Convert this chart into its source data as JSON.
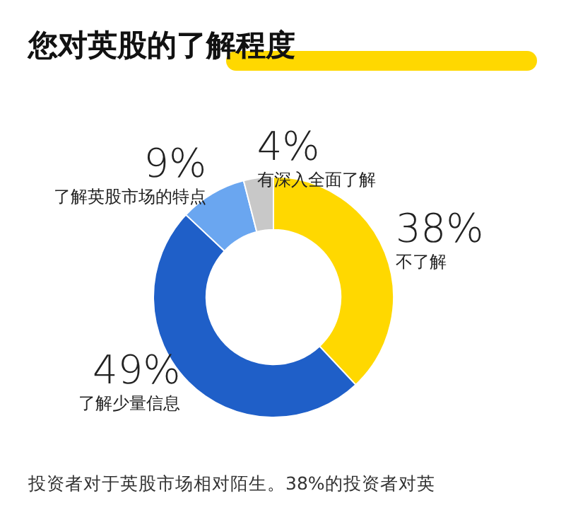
{
  "chart_data": {
    "type": "donut",
    "title": "您对英股的了解程度",
    "categories": [
      "不了解",
      "了解少量信息",
      "了解英股市场的特点",
      "有深入全面了解"
    ],
    "values": [
      38,
      49,
      9,
      4
    ],
    "value_labels": [
      "38%",
      "49%",
      "9%",
      "4%"
    ],
    "colors": [
      "#ffd800",
      "#1f5fc8",
      "#6aa6f0",
      "#c8c8c8"
    ],
    "legend": false,
    "annotations": [
      "投资者对于英股市场相对陌生。38%的投资者对英"
    ]
  }
}
